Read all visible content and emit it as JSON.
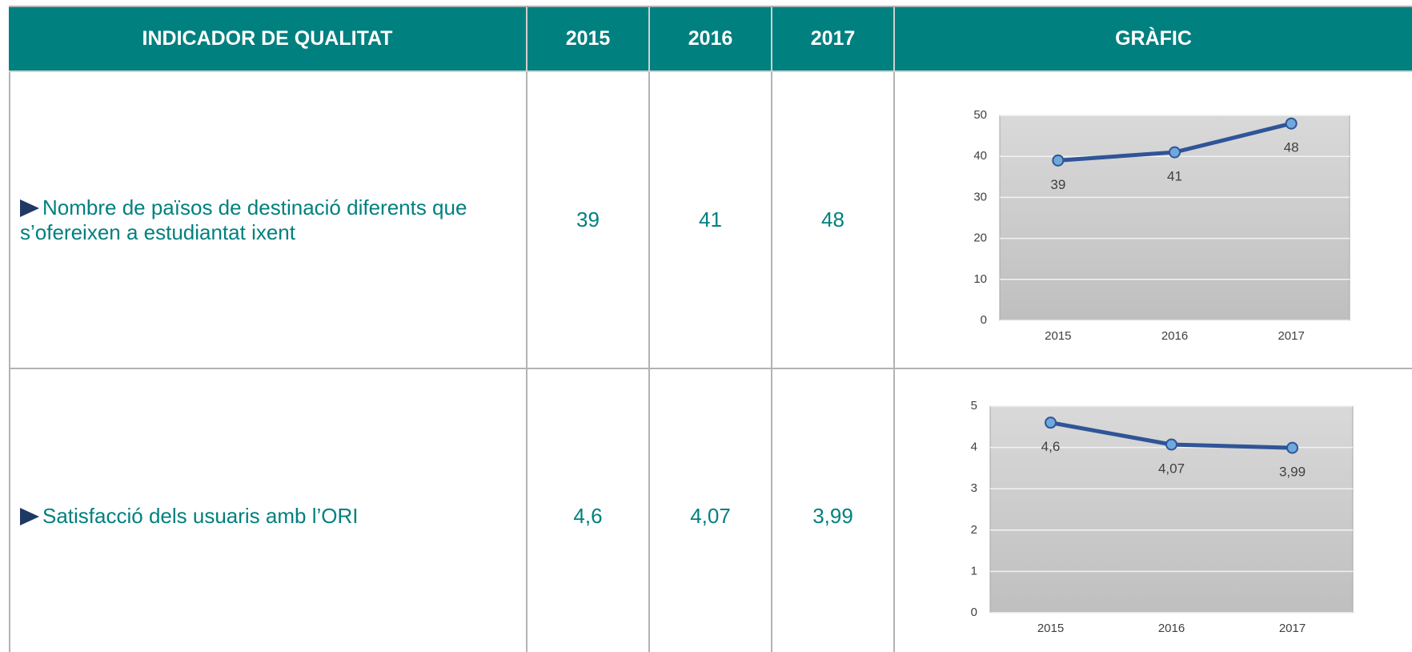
{
  "table": {
    "header": [
      "INDICADOR DE QUALITAT",
      "2015",
      "2016",
      "2017",
      "GRÀFIC"
    ],
    "rows": [
      {
        "label": "Nombre de països de destinació diferents que s’ofereixen a estudiantat ixent",
        "cells": [
          "39",
          "41",
          "48"
        ],
        "chart": {
          "type": "line",
          "categories": [
            "2015",
            "2016",
            "2017"
          ],
          "values": [
            39,
            41,
            48
          ],
          "ylim": [
            0,
            50
          ],
          "yticks": [
            0,
            10,
            20,
            30,
            40,
            50
          ],
          "grid": true,
          "color": "#2f5597"
        }
      },
      {
        "label": "Satisfacció dels usuaris amb l’ORI",
        "cells": [
          "4,6",
          "4,07",
          "3,99"
        ],
        "chart": {
          "type": "line",
          "categories": [
            "2015",
            "2016",
            "2017"
          ],
          "values": [
            4.6,
            4.07,
            3.99
          ],
          "value_labels": [
            "4,6",
            "4,07",
            "3,99"
          ],
          "ylim": [
            0,
            5
          ],
          "yticks": [
            0,
            1,
            2,
            3,
            4,
            5
          ],
          "grid": true,
          "color": "#2f5597"
        }
      }
    ]
  }
}
